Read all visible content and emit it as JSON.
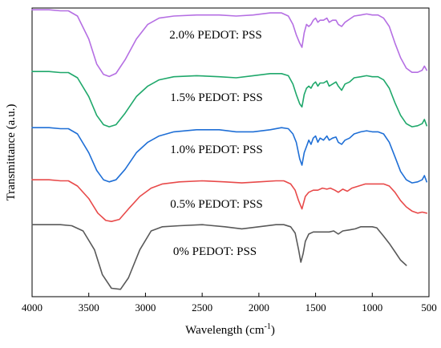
{
  "chart_data": {
    "type": "line",
    "xlabel": "Wavelength (cm",
    "xlabel_sup": "-1",
    "xlabel_suffix": ")",
    "ylabel": "Transmittance (a.u.)",
    "xlim": [
      4000,
      500
    ],
    "x_reversed": true,
    "x_ticks": [
      4000,
      3500,
      3000,
      2500,
      2000,
      1500,
      1000,
      500
    ],
    "y_ticks_shown": false,
    "grid": false,
    "series": [
      {
        "name": "0% PEDOT: PSS",
        "color": "#595959",
        "x": [
          4000,
          3750,
          3650,
          3550,
          3450,
          3380,
          3300,
          3220,
          3150,
          3050,
          2950,
          2850,
          2700,
          2500,
          2300,
          2150,
          2000,
          1850,
          1780,
          1720,
          1680,
          1650,
          1630,
          1610,
          1590,
          1560,
          1520,
          1480,
          1420,
          1380,
          1340,
          1300,
          1260,
          1200,
          1150,
          1100,
          1050,
          1000,
          960,
          900,
          850,
          800,
          750,
          700
        ],
        "y": [
          0.06,
          0.06,
          0.05,
          0.0,
          -0.18,
          -0.42,
          -0.55,
          -0.56,
          -0.45,
          -0.18,
          0.0,
          0.04,
          0.05,
          0.06,
          0.04,
          0.02,
          0.04,
          0.06,
          0.06,
          0.04,
          -0.02,
          -0.18,
          -0.3,
          -0.22,
          -0.1,
          -0.03,
          -0.01,
          -0.01,
          -0.01,
          -0.01,
          0.0,
          -0.03,
          0.0,
          0.01,
          0.02,
          0.04,
          0.04,
          0.04,
          0.03,
          -0.05,
          -0.12,
          -0.2,
          -0.28,
          -0.33
        ]
      },
      {
        "name": "0.5% PEDOT: PSS",
        "color": "#e84a4a",
        "x": [
          4000,
          3850,
          3750,
          3680,
          3600,
          3500,
          3420,
          3350,
          3300,
          3230,
          3150,
          3050,
          2950,
          2850,
          2700,
          2500,
          2300,
          2150,
          2000,
          1850,
          1780,
          1720,
          1680,
          1650,
          1620,
          1590,
          1560,
          1520,
          1480,
          1440,
          1400,
          1370,
          1330,
          1300,
          1260,
          1220,
          1180,
          1120,
          1060,
          1000,
          950,
          900,
          850,
          800,
          750,
          700,
          650,
          600,
          560,
          520
        ],
        "y": [
          0.06,
          0.06,
          0.05,
          0.05,
          0.0,
          -0.12,
          -0.26,
          -0.33,
          -0.34,
          -0.32,
          -0.22,
          -0.1,
          -0.02,
          0.02,
          0.04,
          0.05,
          0.04,
          0.03,
          0.04,
          0.05,
          0.05,
          0.02,
          -0.04,
          -0.14,
          -0.22,
          -0.1,
          -0.06,
          -0.04,
          -0.04,
          -0.02,
          -0.03,
          -0.02,
          -0.04,
          -0.06,
          -0.03,
          -0.05,
          -0.02,
          0.0,
          0.02,
          0.02,
          0.02,
          0.02,
          0.0,
          -0.06,
          -0.14,
          -0.2,
          -0.24,
          -0.26,
          -0.25,
          -0.26
        ]
      },
      {
        "name": "1.0% PEDOT: PSS",
        "color": "#1f6fd6",
        "x": [
          4000,
          3850,
          3750,
          3680,
          3600,
          3500,
          3430,
          3370,
          3320,
          3260,
          3180,
          3080,
          2980,
          2880,
          2750,
          2550,
          2350,
          2200,
          2050,
          1900,
          1800,
          1740,
          1700,
          1670,
          1640,
          1620,
          1600,
          1580,
          1560,
          1540,
          1520,
          1500,
          1480,
          1460,
          1430,
          1400,
          1380,
          1350,
          1320,
          1300,
          1270,
          1240,
          1200,
          1160,
          1100,
          1050,
          1000,
          950,
          900,
          850,
          800,
          750,
          700,
          650,
          600,
          560,
          540,
          520
        ],
        "y": [
          0.06,
          0.06,
          0.05,
          0.05,
          0.0,
          -0.18,
          -0.35,
          -0.44,
          -0.46,
          -0.44,
          -0.34,
          -0.18,
          -0.08,
          -0.02,
          0.02,
          0.04,
          0.04,
          0.02,
          0.02,
          0.04,
          0.06,
          0.05,
          0.0,
          -0.08,
          -0.24,
          -0.3,
          -0.18,
          -0.12,
          -0.06,
          -0.1,
          -0.04,
          -0.02,
          -0.08,
          -0.04,
          -0.06,
          -0.02,
          -0.06,
          -0.04,
          -0.03,
          -0.08,
          -0.1,
          -0.06,
          -0.04,
          0.0,
          0.02,
          0.03,
          0.02,
          0.02,
          0.0,
          -0.08,
          -0.22,
          -0.36,
          -0.44,
          -0.47,
          -0.46,
          -0.44,
          -0.4,
          -0.46
        ]
      },
      {
        "name": "1.5% PEDOT: PSS",
        "color": "#1fa86b",
        "x": [
          4000,
          3850,
          3750,
          3680,
          3600,
          3500,
          3430,
          3370,
          3320,
          3260,
          3180,
          3080,
          2980,
          2880,
          2750,
          2550,
          2350,
          2200,
          2050,
          1900,
          1800,
          1740,
          1700,
          1670,
          1640,
          1620,
          1600,
          1580,
          1560,
          1540,
          1520,
          1500,
          1480,
          1460,
          1430,
          1400,
          1380,
          1350,
          1320,
          1300,
          1270,
          1240,
          1200,
          1160,
          1100,
          1050,
          1000,
          950,
          900,
          850,
          800,
          750,
          700,
          650,
          600,
          560,
          540,
          520
        ],
        "y": [
          0.06,
          0.06,
          0.05,
          0.05,
          0.0,
          -0.18,
          -0.36,
          -0.45,
          -0.47,
          -0.45,
          -0.34,
          -0.18,
          -0.08,
          -0.02,
          0.01,
          0.02,
          0.01,
          0.0,
          0.02,
          0.04,
          0.04,
          0.02,
          -0.06,
          -0.16,
          -0.25,
          -0.28,
          -0.16,
          -0.1,
          -0.08,
          -0.1,
          -0.06,
          -0.04,
          -0.08,
          -0.05,
          -0.05,
          -0.03,
          -0.08,
          -0.06,
          -0.04,
          -0.08,
          -0.12,
          -0.06,
          -0.04,
          0.0,
          0.01,
          0.02,
          0.01,
          0.01,
          -0.02,
          -0.1,
          -0.24,
          -0.36,
          -0.44,
          -0.47,
          -0.46,
          -0.44,
          -0.4,
          -0.46
        ]
      },
      {
        "name": "2.0% PEDOT: PSS",
        "color": "#b56fe3",
        "x": [
          4000,
          3850,
          3750,
          3680,
          3600,
          3500,
          3430,
          3370,
          3320,
          3260,
          3180,
          3080,
          2980,
          2880,
          2750,
          2550,
          2350,
          2200,
          2050,
          1900,
          1800,
          1740,
          1700,
          1670,
          1640,
          1620,
          1600,
          1580,
          1560,
          1540,
          1520,
          1500,
          1480,
          1460,
          1430,
          1400,
          1380,
          1350,
          1320,
          1300,
          1270,
          1240,
          1200,
          1160,
          1100,
          1050,
          1000,
          950,
          900,
          850,
          800,
          750,
          700,
          650,
          600,
          560,
          540,
          520
        ],
        "y": [
          0.06,
          0.06,
          0.05,
          0.05,
          0.0,
          -0.22,
          -0.46,
          -0.56,
          -0.58,
          -0.55,
          -0.42,
          -0.22,
          -0.08,
          -0.02,
          0.0,
          0.01,
          0.01,
          0.0,
          0.01,
          0.03,
          0.03,
          0.0,
          -0.08,
          -0.18,
          -0.26,
          -0.3,
          -0.16,
          -0.08,
          -0.1,
          -0.08,
          -0.04,
          -0.02,
          -0.06,
          -0.04,
          -0.04,
          -0.02,
          -0.06,
          -0.04,
          -0.04,
          -0.08,
          -0.1,
          -0.06,
          -0.03,
          0.0,
          0.01,
          0.02,
          0.01,
          0.01,
          -0.02,
          -0.1,
          -0.26,
          -0.4,
          -0.5,
          -0.54,
          -0.54,
          -0.52,
          -0.48,
          -0.52
        ]
      }
    ]
  }
}
